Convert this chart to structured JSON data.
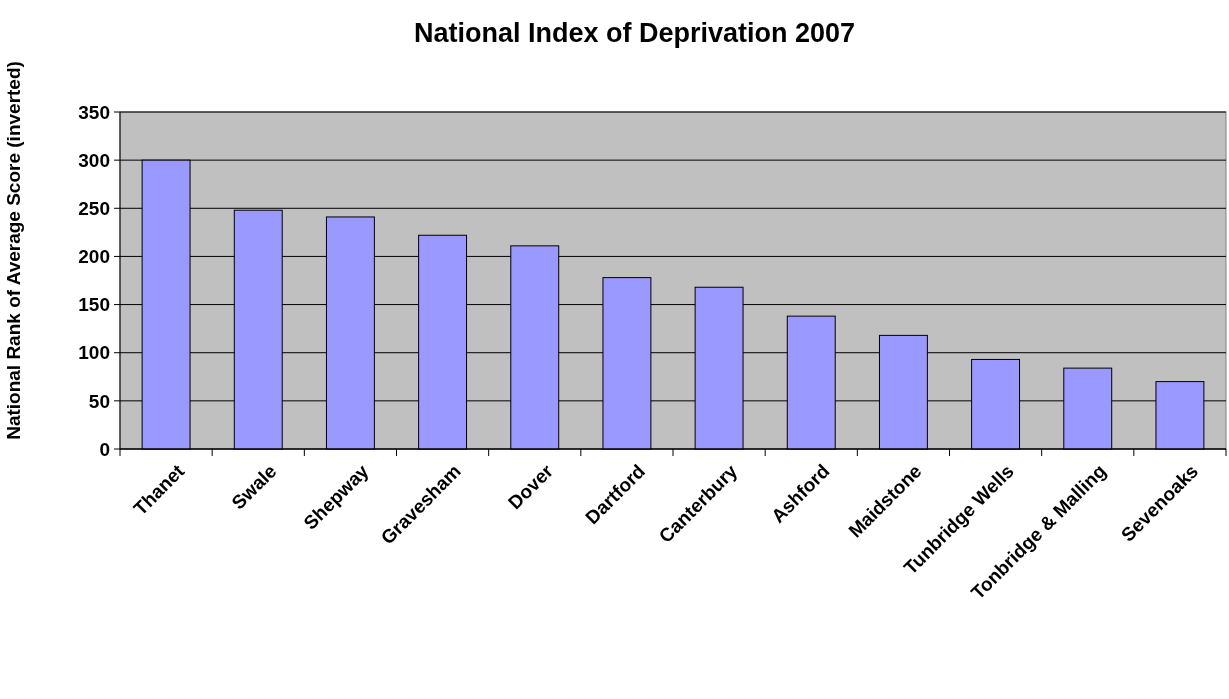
{
  "chart_data": {
    "type": "bar",
    "title": "National Index of Deprivation 2007",
    "ylabel": "National Rank of Average Score (inverted)",
    "categories": [
      "Thanet",
      "Swale",
      "Shepway",
      "Gravesham",
      "Dover",
      "Dartford",
      "Canterbury",
      "Ashford",
      "Maidstone",
      "Tunbridge Wells",
      "Tonbridge & Malling",
      "Sevenoaks"
    ],
    "values": [
      300,
      248,
      241,
      222,
      211,
      178,
      168,
      138,
      118,
      93,
      84,
      70
    ],
    "color": "#9999ff",
    "ylim": [
      0,
      350
    ],
    "yticks": [
      0,
      50,
      100,
      150,
      200,
      250,
      300,
      350
    ],
    "grid": "y"
  }
}
